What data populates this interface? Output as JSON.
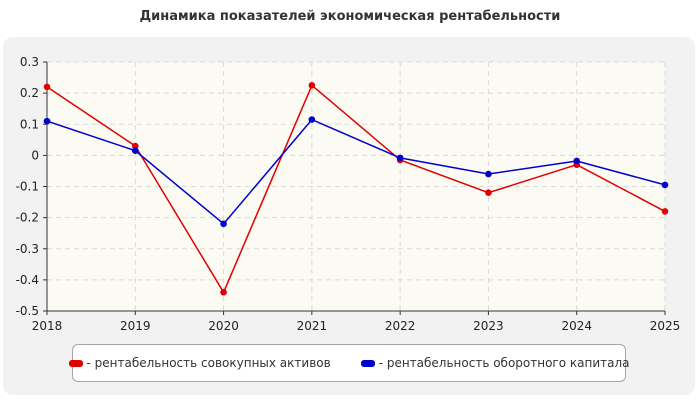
{
  "chart_data": {
    "type": "line",
    "title": "Динамика показателей экономическая рентабельности",
    "x": [
      "2018",
      "2019",
      "2020",
      "2021",
      "2022",
      "2023",
      "2024",
      "2025"
    ],
    "ylim": [
      -0.5,
      0.3
    ],
    "yticks": [
      0.3,
      0.2,
      0.1,
      0,
      -0.1,
      -0.2,
      -0.3,
      -0.4,
      -0.5
    ],
    "ytick_labels": [
      "0.3",
      "0.2",
      "0.1",
      "0",
      "-0.1",
      "-0.2",
      "-0.3",
      "-0.4",
      "-0.5"
    ],
    "grid": true,
    "legend_position": "bottom",
    "series": [
      {
        "name": "- рентабельность совокупных активов",
        "color": "#e00000",
        "values": [
          0.22,
          0.03,
          -0.44,
          0.225,
          -0.015,
          -0.12,
          -0.03,
          -0.18
        ]
      },
      {
        "name": "- рентабельность оборотного капитала",
        "color": "#0000cc",
        "values": [
          0.11,
          0.015,
          -0.22,
          0.115,
          -0.008,
          -0.06,
          -0.018,
          -0.095
        ]
      }
    ]
  }
}
